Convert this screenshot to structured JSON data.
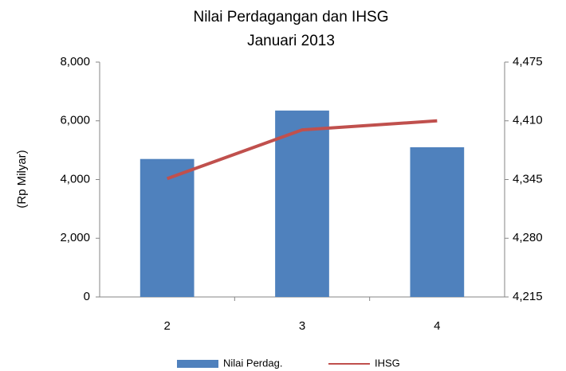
{
  "chart_data": {
    "type": "bar",
    "title": "Nilai Perdagangan dan IHSG",
    "subtitle": "Januari 2013",
    "y_label": "(Rp Milyar)",
    "categories": [
      "2",
      "3",
      "4"
    ],
    "series": [
      {
        "name": "Nilai Perdag.",
        "type": "bar",
        "color": "#4f81bd",
        "values": [
          4700,
          6350,
          5100
        ]
      },
      {
        "name": "IHSG",
        "type": "line",
        "axis": "y2",
        "color": "#c0504d",
        "values": [
          4346,
          4400,
          4410
        ]
      }
    ],
    "ylim": [
      0,
      8000
    ],
    "yticks": [
      0,
      {
        "value": 2000,
        "label": "2,000"
      },
      {
        "value": 4000,
        "label": "4,000"
      },
      {
        "value": 6000,
        "label": "6,000"
      },
      {
        "value": 8000,
        "label": "8,000"
      }
    ],
    "y2lim": [
      4215,
      4475
    ],
    "y2ticks": [
      {
        "value": 4215,
        "label": "4,215"
      },
      {
        "value": 4280,
        "label": "4,280"
      },
      {
        "value": 4345,
        "label": "4,345"
      },
      {
        "value": 4410,
        "label": "4,410"
      },
      {
        "value": 4475,
        "label": "4,475"
      }
    ],
    "legend": "bottom"
  }
}
